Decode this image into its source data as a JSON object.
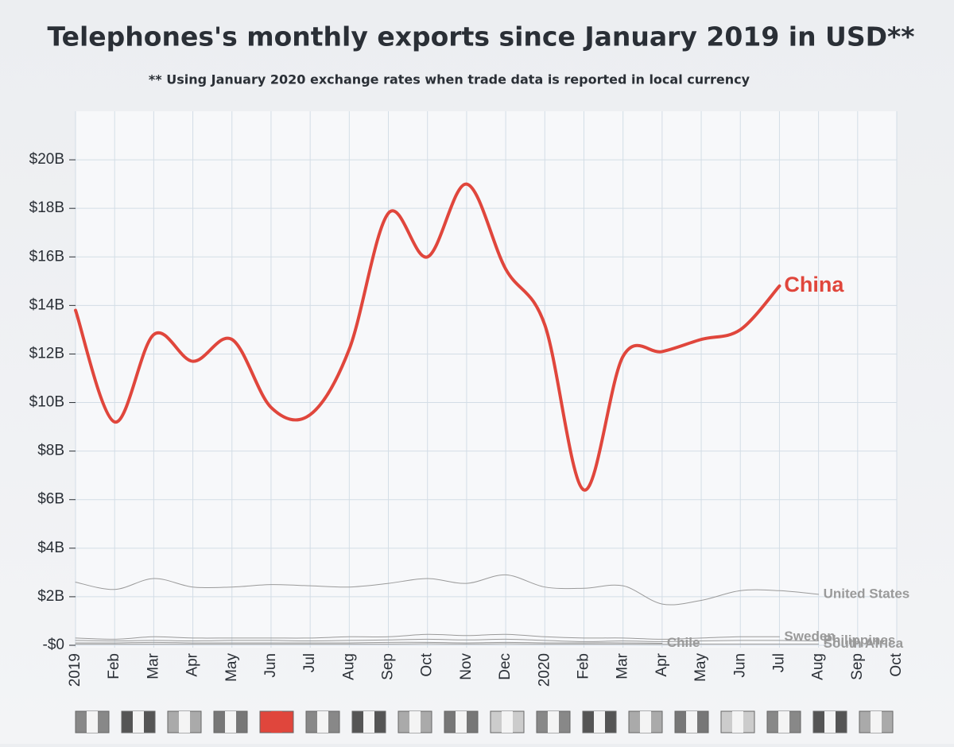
{
  "chart_data": {
    "type": "line",
    "title": "Telephones's monthly exports since January 2019 in USD**",
    "subtitle": "** Using January 2020 exchange rates when trade data is reported in local currency",
    "categories": [
      "2019",
      "Feb",
      "Mar",
      "Apr",
      "May",
      "Jun",
      "Jul",
      "Aug",
      "Sep",
      "Oct",
      "Nov",
      "Dec",
      "2020",
      "Feb",
      "Mar",
      "Apr",
      "May",
      "Jun",
      "Jul",
      "Aug",
      "Sep",
      "Oct"
    ],
    "ylim": [
      0,
      22
    ],
    "yticks": [
      {
        "value": 0,
        "label": "-$0"
      },
      {
        "value": 2,
        "label": "$2B"
      },
      {
        "value": 4,
        "label": "$4B"
      },
      {
        "value": 6,
        "label": "$6B"
      },
      {
        "value": 8,
        "label": "$8B"
      },
      {
        "value": 10,
        "label": "$10B"
      },
      {
        "value": 12,
        "label": "$12B"
      },
      {
        "value": 14,
        "label": "$14B"
      },
      {
        "value": 16,
        "label": "$16B"
      },
      {
        "value": 18,
        "label": "$18B"
      },
      {
        "value": 20,
        "label": "$20B"
      }
    ],
    "grid": true,
    "series": [
      {
        "name": "China",
        "color": "#e0463c",
        "values": [
          13.8,
          9.2,
          12.8,
          11.7,
          12.6,
          9.8,
          9.5,
          12.2,
          17.8,
          16.0,
          19.0,
          15.5,
          13.2,
          6.4,
          11.9,
          12.1,
          12.6,
          13.0,
          14.8,
          null,
          null,
          null
        ]
      },
      {
        "name": "United States",
        "color": "#9a9a9a",
        "values": [
          2.6,
          2.3,
          2.75,
          2.4,
          2.4,
          2.5,
          2.45,
          2.4,
          2.55,
          2.75,
          2.55,
          2.9,
          2.4,
          2.35,
          2.45,
          1.7,
          1.85,
          2.25,
          2.25,
          2.1,
          null,
          null
        ]
      },
      {
        "name": "Sweden",
        "color": "#9a9a9a",
        "values": [
          0.3,
          0.25,
          0.35,
          0.3,
          0.3,
          0.3,
          0.3,
          0.35,
          0.35,
          0.45,
          0.4,
          0.45,
          0.35,
          0.3,
          0.3,
          0.25,
          0.3,
          0.35,
          0.35,
          null,
          null,
          null
        ]
      },
      {
        "name": "Chile",
        "color": "#9a9a9a",
        "values": [
          0.1,
          0.1,
          0.12,
          0.1,
          0.1,
          0.1,
          0.1,
          0.1,
          0.12,
          0.12,
          0.1,
          0.12,
          0.1,
          0.1,
          0.1,
          0.08,
          null,
          null,
          null,
          null,
          null,
          null
        ]
      },
      {
        "name": "Philippines",
        "color": "#9a9a9a",
        "values": [
          0.2,
          0.18,
          0.2,
          0.18,
          0.2,
          0.2,
          0.18,
          0.2,
          0.22,
          0.25,
          0.22,
          0.25,
          0.2,
          0.15,
          0.18,
          0.15,
          0.18,
          0.2,
          0.2,
          0.18,
          null,
          null
        ]
      },
      {
        "name": "South Africa",
        "color": "#9a9a9a",
        "values": [
          0.05,
          0.05,
          0.05,
          0.05,
          0.05,
          0.05,
          0.05,
          0.05,
          0.05,
          0.06,
          0.05,
          0.06,
          0.05,
          0.05,
          0.05,
          0.04,
          0.05,
          0.05,
          0.05,
          0.05,
          null,
          null
        ]
      }
    ]
  }
}
